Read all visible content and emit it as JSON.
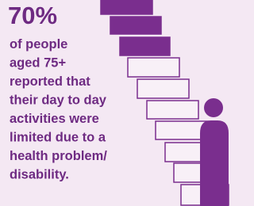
{
  "stat": "70%",
  "lines": [
    "of people",
    "aged 75+",
    "reported that",
    "their day to day",
    "activities were",
    "limited due to a",
    "health problem/",
    "disability."
  ]
}
